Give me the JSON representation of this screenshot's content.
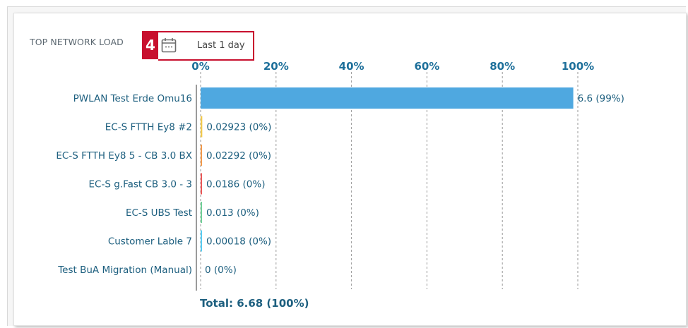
{
  "widget": {
    "title": "TOP NETWORK LOAD",
    "step_badge": "4",
    "date_range": "Last 1 day",
    "total_text": "Total: 6.68 (100%)"
  },
  "colors": {
    "axis_text": "#1d6f9a",
    "label_text": "#1d5f7f",
    "highlight": "#c8102e"
  },
  "chart_data": {
    "type": "bar",
    "orientation": "horizontal",
    "title": "TOP NETWORK LOAD",
    "xlabel": "",
    "ylabel": "",
    "x_axis_position": "top",
    "x_ticks": [
      "0%",
      "20%",
      "40%",
      "60%",
      "80%",
      "100%"
    ],
    "xlim": [
      0,
      100
    ],
    "grid": true,
    "categories": [
      "PWLAN Test Erde Omu16",
      "EC-S FTTH Ey8 #2",
      "EC-S FTTH Ey8 5 - CB 3.0 BX",
      "EC-S g.Fast CB 3.0 - 3",
      "EC-S UBS Test",
      "Customer Lable 7",
      "Test BuA Migration (Manual)"
    ],
    "values": [
      6.6,
      0.02923,
      0.02292,
      0.0186,
      0.013,
      0.00018,
      0
    ],
    "percent_share": [
      98.8,
      0.44,
      0.34,
      0.28,
      0.19,
      0.003,
      0
    ],
    "value_labels": [
      "6.6  (99%)",
      "0.02923  (0%)",
      "0.02292  (0%)",
      "0.0186  (0%)",
      "0.013  (0%)",
      "0.00018  (0%)",
      "0  (0%)"
    ],
    "bar_colors": [
      "#4fa8e0",
      "#f2c94c",
      "#f2994a",
      "#eb5757",
      "#6fcf97",
      "#56ccf2",
      "#9b9b9b"
    ],
    "total": 6.68
  }
}
